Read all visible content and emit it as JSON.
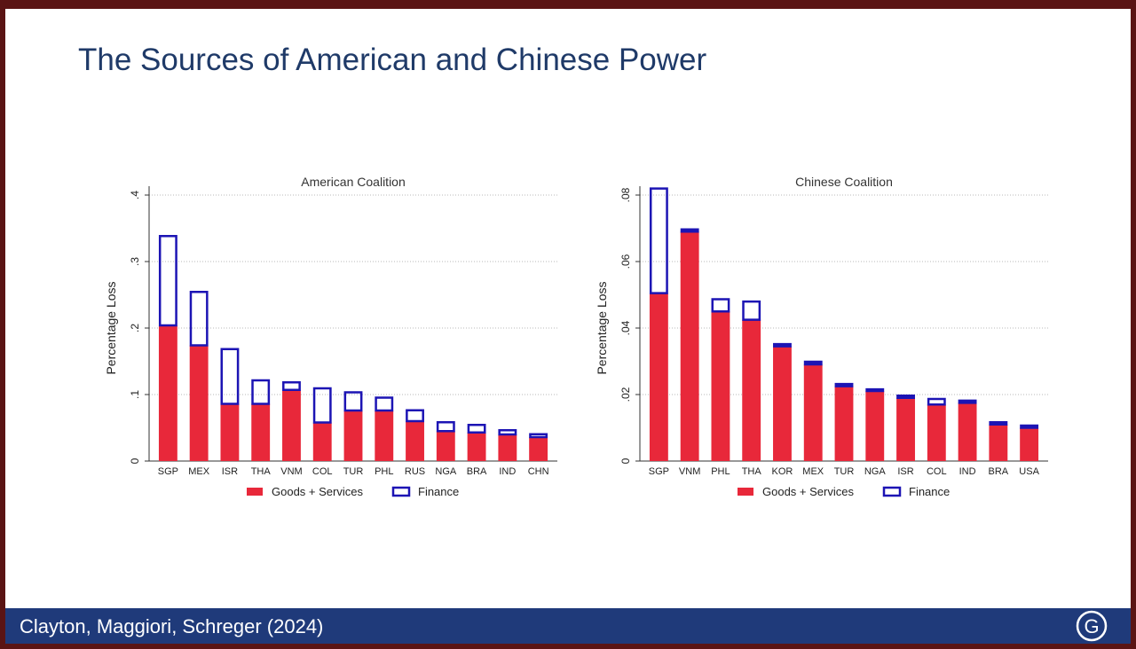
{
  "slide": {
    "title": "The Sources of American and Chinese Power",
    "footer": "Clayton, Maggiori, Schreger (2024)",
    "logo_letter": "G"
  },
  "colors": {
    "goods": "#e8283a",
    "finance": "#1c14b4",
    "title": "#1f3a68",
    "footer_bg": "#1f3a7a"
  },
  "chart_data": [
    {
      "type": "bar",
      "stacked": true,
      "title": "American Coalition",
      "ylabel": "Percentage Loss",
      "ylim": [
        0,
        0.4
      ],
      "yticks": [
        0,
        0.1,
        0.2,
        0.3,
        0.4
      ],
      "ytick_labels": [
        "0",
        ".1",
        ".2",
        ".3",
        ".4"
      ],
      "grid": true,
      "legend_position": "bottom",
      "categories": [
        "SGP",
        "MEX",
        "ISR",
        "THA",
        "VNM",
        "COL",
        "TUR",
        "PHL",
        "RUS",
        "NGA",
        "BRA",
        "IND",
        "CHN"
      ],
      "series": [
        {
          "name": "Goods + Services",
          "values": [
            0.204,
            0.174,
            0.086,
            0.086,
            0.107,
            0.058,
            0.076,
            0.076,
            0.06,
            0.045,
            0.043,
            0.04,
            0.036
          ]
        },
        {
          "name": "Finance",
          "values": [
            0.136,
            0.082,
            0.084,
            0.037,
            0.013,
            0.053,
            0.029,
            0.021,
            0.018,
            0.015,
            0.013,
            0.008,
            0.006
          ]
        }
      ]
    },
    {
      "type": "bar",
      "stacked": true,
      "title": "Chinese Coalition",
      "ylabel": "Percentage Loss",
      "ylim": [
        0,
        0.08
      ],
      "yticks": [
        0,
        0.02,
        0.04,
        0.06,
        0.08
      ],
      "ytick_labels": [
        "0",
        ".02",
        ".04",
        ".06",
        ".08"
      ],
      "grid": true,
      "legend_position": "bottom",
      "categories": [
        "SGP",
        "VNM",
        "PHL",
        "THA",
        "KOR",
        "MEX",
        "TUR",
        "NGA",
        "ISR",
        "COL",
        "IND",
        "BRA",
        "USA"
      ],
      "series": [
        {
          "name": "Goods + Services",
          "values": [
            0.0505,
            0.069,
            0.045,
            0.0425,
            0.0345,
            0.029,
            0.0225,
            0.021,
            0.019,
            0.017,
            0.0175,
            0.011,
            0.01
          ]
        },
        {
          "name": "Finance",
          "values": [
            0.0318,
            0.001,
            0.004,
            0.0058,
            0.001,
            0.0008,
            0.001,
            0.0005,
            0.001,
            0.002,
            0.001,
            0.001,
            0.001
          ]
        }
      ]
    }
  ]
}
